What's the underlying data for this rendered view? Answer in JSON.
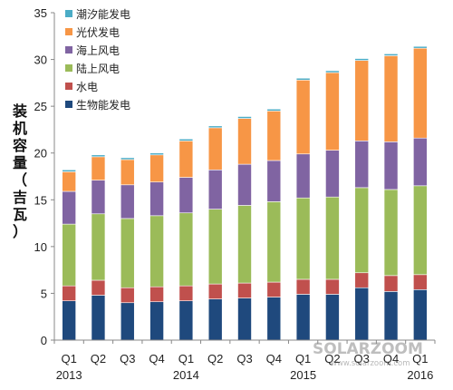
{
  "chart_data": {
    "type": "bar",
    "stacked": true,
    "ylabel": "装机容量（吉瓦）",
    "ylim": [
      0,
      35
    ],
    "yticks": [
      0,
      5,
      10,
      15,
      20,
      25,
      30,
      35
    ],
    "grid": false,
    "legend_position": "top-left",
    "categories": [
      "Q1",
      "Q2",
      "Q3",
      "Q4",
      "Q1",
      "Q2",
      "Q3",
      "Q4",
      "Q1",
      "Q2",
      "Q3",
      "Q4",
      "Q1"
    ],
    "year_labels": [
      {
        "index": 0,
        "label": "2013"
      },
      {
        "index": 4,
        "label": "2014"
      },
      {
        "index": 8,
        "label": "2015"
      },
      {
        "index": 12,
        "label": "2016"
      }
    ],
    "series": [
      {
        "name": "生物能发电",
        "color": "#1f497d",
        "values": [
          4.2,
          4.8,
          4.0,
          4.1,
          4.2,
          4.4,
          4.5,
          4.6,
          4.9,
          4.9,
          5.6,
          5.2,
          5.4
        ]
      },
      {
        "name": "水电",
        "color": "#c0504d",
        "values": [
          1.6,
          1.6,
          1.6,
          1.6,
          1.6,
          1.6,
          1.6,
          1.6,
          1.6,
          1.6,
          1.6,
          1.7,
          1.6
        ]
      },
      {
        "name": "陆上风电",
        "color": "#9bbb59",
        "values": [
          6.6,
          7.1,
          7.4,
          7.6,
          7.8,
          8.0,
          8.3,
          8.6,
          8.7,
          8.8,
          9.1,
          9.2,
          9.5
        ]
      },
      {
        "name": "海上风电",
        "color": "#8064a2",
        "values": [
          3.5,
          3.6,
          3.6,
          3.6,
          3.8,
          4.2,
          4.4,
          4.4,
          4.7,
          5.0,
          5.0,
          5.1,
          5.1
        ]
      },
      {
        "name": "光伏发电",
        "color": "#f79646",
        "values": [
          2.1,
          2.5,
          2.7,
          2.9,
          3.9,
          4.5,
          4.9,
          5.3,
          7.9,
          8.3,
          8.6,
          9.2,
          9.6
        ]
      },
      {
        "name": "潮汐能发电",
        "color": "#4bacc6",
        "values": [
          0.2,
          0.2,
          0.2,
          0.2,
          0.2,
          0.2,
          0.2,
          0.2,
          0.2,
          0.2,
          0.2,
          0.2,
          0.2
        ]
      }
    ]
  },
  "watermark": {
    "brand": "SOLARZOOM",
    "url": "www.solarzoom.com"
  }
}
